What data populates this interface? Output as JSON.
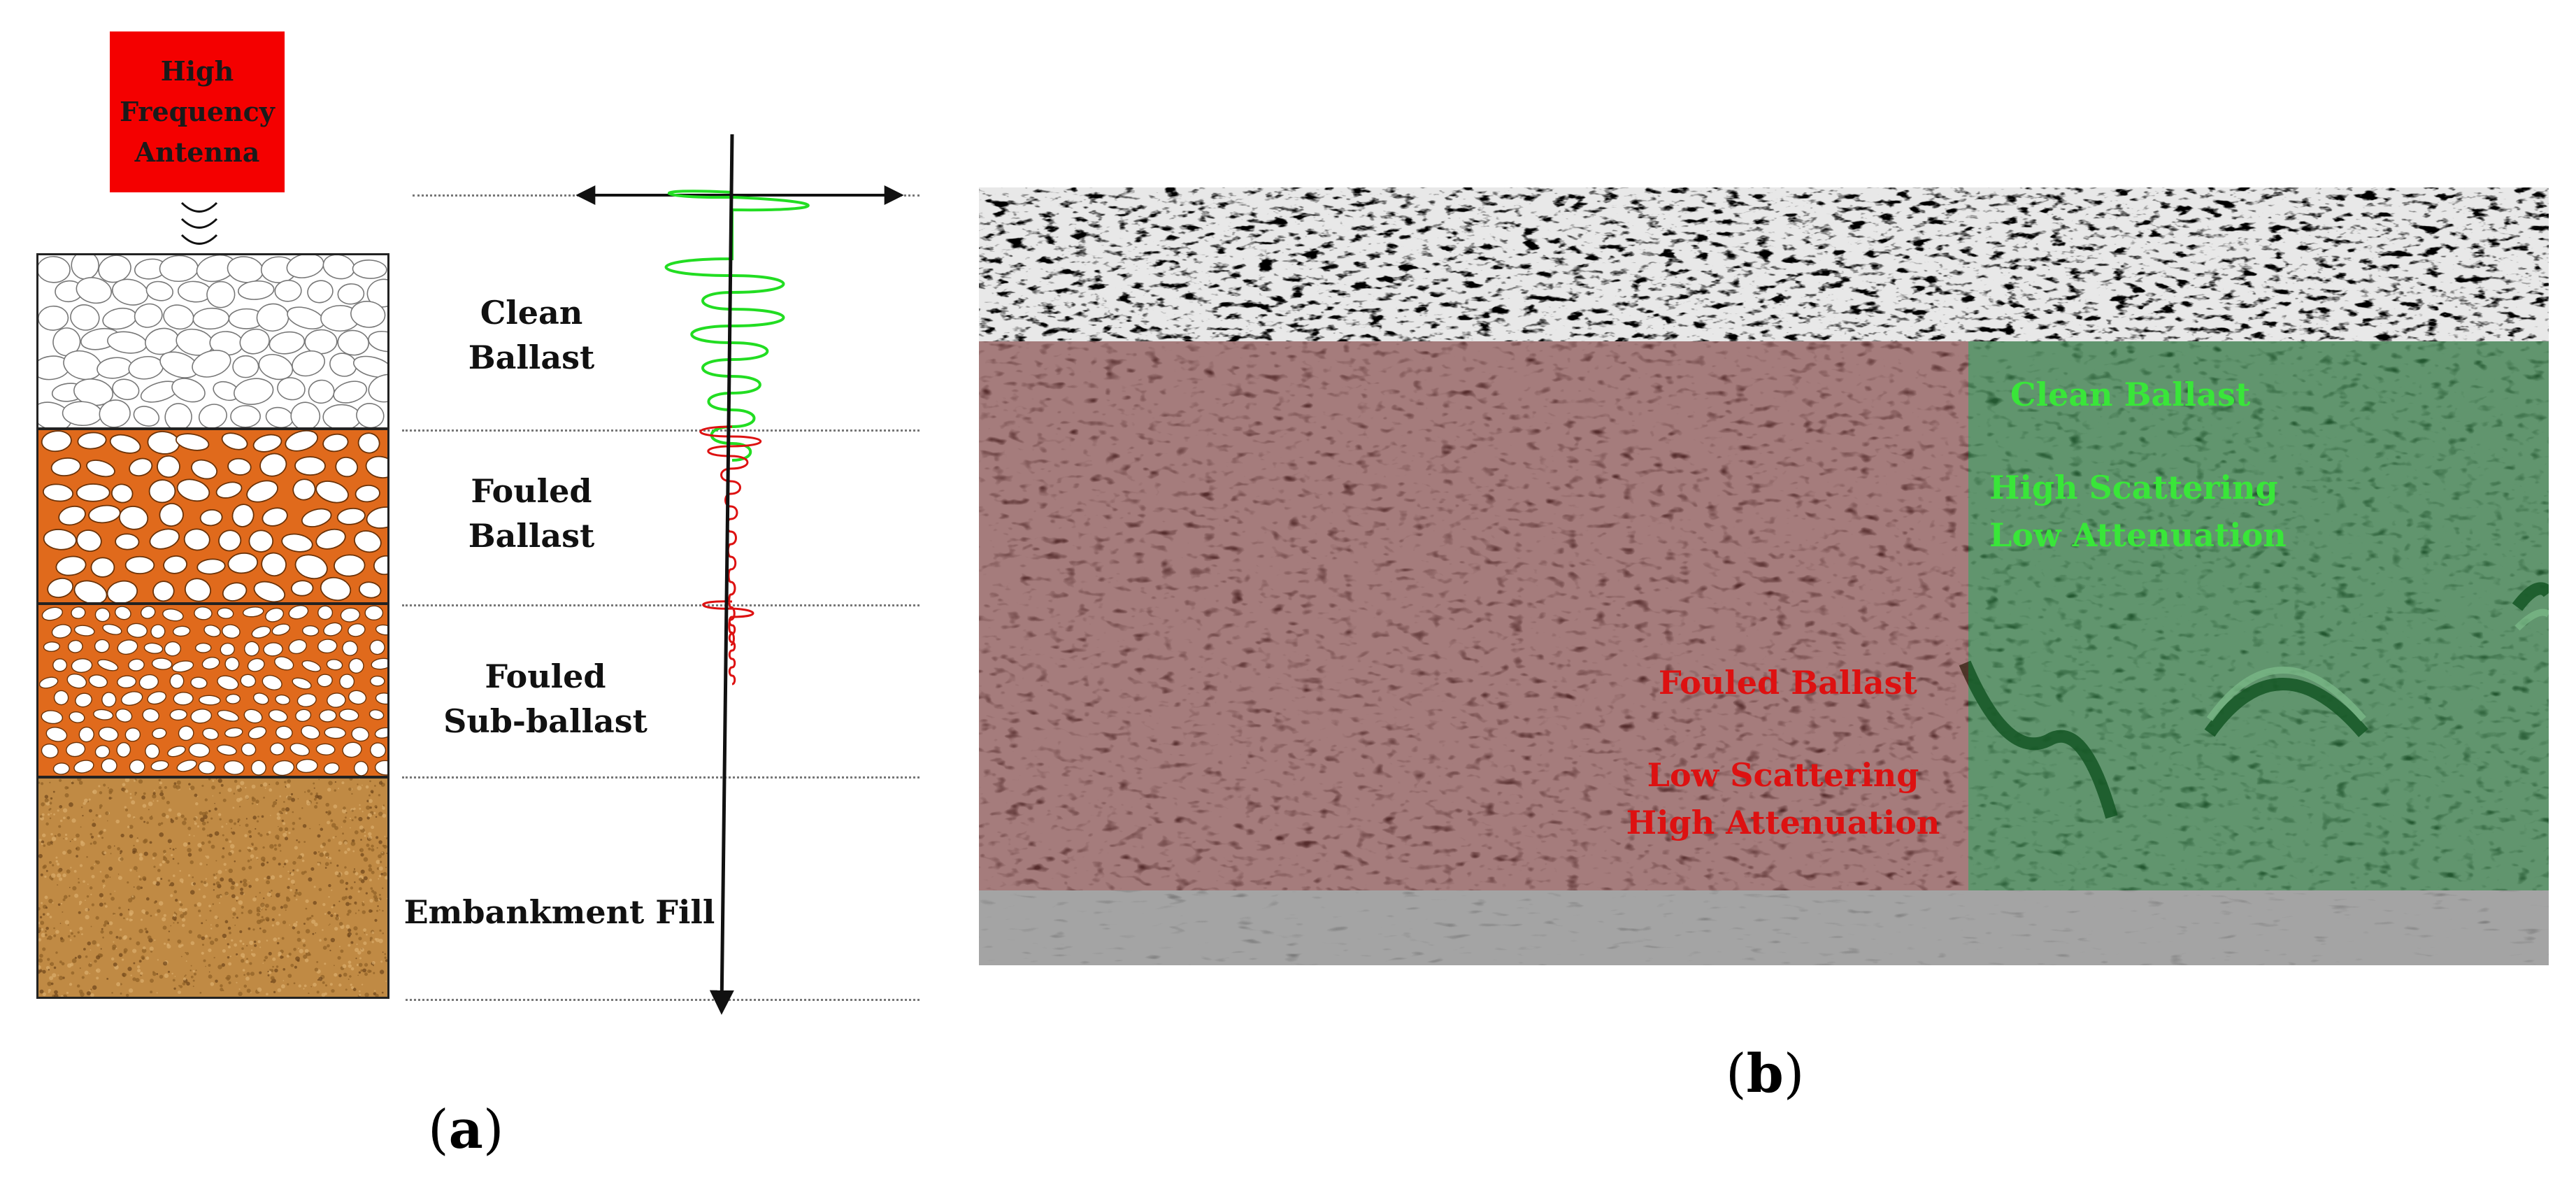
{
  "panel_a": {
    "antenna_label": "High Frequency Antenna",
    "layers": [
      {
        "label": "Clean Ballast",
        "line1": "Clean",
        "line2": "Ballast"
      },
      {
        "label": "Fouled Ballast",
        "line1": "Fouled",
        "line2": "Ballast"
      },
      {
        "label": "Fouled Sub-ballast",
        "line1": "Fouled",
        "line2": "Sub-ballast"
      },
      {
        "label": "Embankment Fill",
        "line1": "Embankment Fill"
      }
    ],
    "panel_label": {
      "open": "(",
      "letter": "a",
      "close": ")"
    },
    "colors": {
      "antenna": "#f40000",
      "clean_trace": "#22dd22",
      "fouled_trace": "#dd1111",
      "fouled_fill": "#e06a1c",
      "fill_soil": "#c08a44"
    }
  },
  "panel_b": {
    "green_region": {
      "title": "Clean Ballast",
      "line1": "High Scattering",
      "line2": "Low Attenuation",
      "color": "#39e639"
    },
    "red_region": {
      "title": "Fouled Ballast",
      "line1": "Low Scattering",
      "line2": "High Attenuation",
      "color": "#dd1111"
    },
    "panel_label": {
      "open": "(",
      "letter": "b",
      "close": ")"
    }
  }
}
